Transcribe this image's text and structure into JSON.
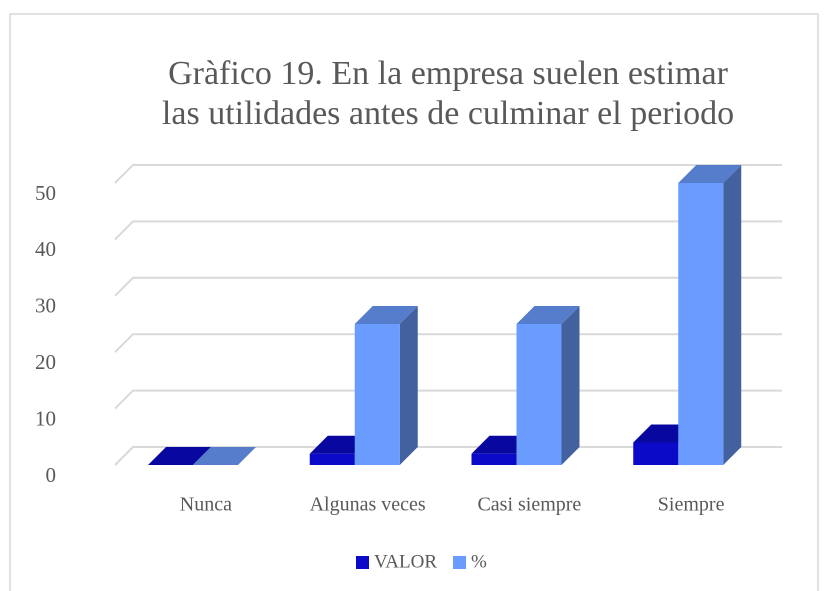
{
  "chart_data": {
    "type": "bar3d",
    "title": [
      "Gràfico 19. En la empresa suelen estimar",
      "las utilidades antes de culminar el periodo"
    ],
    "categories": [
      "Nunca",
      "Algunas veces",
      "Casi siempre",
      "Siempre"
    ],
    "series": [
      {
        "name": "VALOR",
        "color": "#0a0ac8",
        "values": [
          0,
          2,
          2,
          4
        ]
      },
      {
        "name": "%",
        "color": "#6a9cff",
        "values": [
          0,
          25,
          25,
          50
        ]
      }
    ],
    "ylim": [
      0,
      50
    ],
    "yticks": [
      0,
      10,
      20,
      30,
      40,
      50
    ],
    "grid": true,
    "legend": "bottom"
  }
}
